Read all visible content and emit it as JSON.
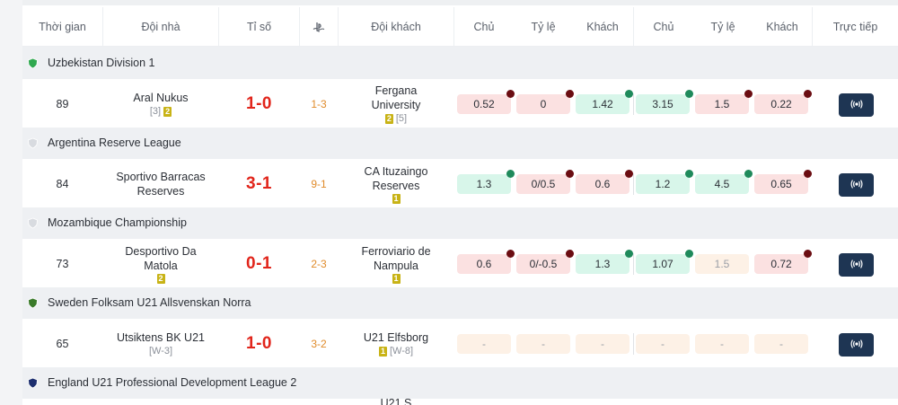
{
  "headers": {
    "time": "Thời gian",
    "home": "Đội nhà",
    "score": "Tỉ số",
    "ps_icon": "playstation-icon",
    "away": "Đội khách",
    "h_home": "Chủ",
    "h_ratio": "Tỷ lệ",
    "h_away": "Khách",
    "o_home": "Chủ",
    "o_ratio": "Tỷ lệ",
    "o_away": "Khách",
    "live": "Trực tiếp"
  },
  "leagues": [
    {
      "name": "Uzbekistan Division 1",
      "flag_color": "#2fa84f",
      "icon": "shield-icon"
    },
    {
      "name": "Argentina Reserve League",
      "flag_color": "#d8dbe0",
      "icon": "ball-icon"
    },
    {
      "name": "Mozambique Championship",
      "flag_color": "#d8dbe0",
      "icon": "ball-icon"
    },
    {
      "name": "Sweden Folksam U21 Allsvenskan Norra",
      "flag_color": "#3a7a2a",
      "icon": "crest-icon"
    },
    {
      "name": "England U21 Professional Development League 2",
      "flag_color": "#1d2f6f",
      "icon": "crest-icon"
    }
  ],
  "matches": [
    {
      "minute": "89",
      "home": "Aral Nukus",
      "home_rank": "[3]",
      "home_cards": "2",
      "score": "1-0",
      "half_time": "1-3",
      "away": "Fergana University",
      "away_rank": "[5]",
      "away_cards": "2",
      "odds": [
        {
          "v": "0.52",
          "c": "red"
        },
        {
          "v": "0",
          "c": "red"
        },
        {
          "v": "1.42",
          "c": "green"
        },
        {
          "v": "3.15",
          "c": "green"
        },
        {
          "v": "1.5",
          "c": "red"
        },
        {
          "v": "0.22",
          "c": "red"
        }
      ]
    },
    {
      "minute": "84",
      "home": "Sportivo Barracas Reserves",
      "home_rank": "",
      "home_cards": "",
      "score": "3-1",
      "half_time": "9-1",
      "away": "CA Ituzaingo Reserves",
      "away_rank": "",
      "away_cards": "1",
      "odds": [
        {
          "v": "1.3",
          "c": "green"
        },
        {
          "v": "0/0.5",
          "c": "red"
        },
        {
          "v": "0.6",
          "c": "red"
        },
        {
          "v": "1.2",
          "c": "green"
        },
        {
          "v": "4.5",
          "c": "green"
        },
        {
          "v": "0.65",
          "c": "red"
        }
      ]
    },
    {
      "minute": "73",
      "home": "Desportivo Da Matola",
      "home_rank": "",
      "home_cards": "2",
      "score": "0-1",
      "half_time": "2-3",
      "away": "Ferroviario de Nampula",
      "away_rank": "",
      "away_cards": "1",
      "odds": [
        {
          "v": "0.6",
          "c": "red"
        },
        {
          "v": "0/-0.5",
          "c": "red"
        },
        {
          "v": "1.3",
          "c": "green"
        },
        {
          "v": "1.07",
          "c": "green"
        },
        {
          "v": "1.5",
          "c": "empty"
        },
        {
          "v": "0.72",
          "c": "red"
        }
      ]
    },
    {
      "minute": "65",
      "home": "Utsiktens BK U21",
      "home_rank": "[W-3]",
      "home_cards": "",
      "score": "1-0",
      "half_time": "3-2",
      "away": "U21 Elfsborg",
      "away_rank": "[W-8]",
      "away_cards": "1",
      "odds": [
        {
          "v": "-",
          "c": "empty"
        },
        {
          "v": "-",
          "c": "empty"
        },
        {
          "v": "-",
          "c": "empty"
        },
        {
          "v": "-",
          "c": "empty"
        },
        {
          "v": "-",
          "c": "empty"
        },
        {
          "v": "-",
          "c": "empty"
        }
      ]
    }
  ],
  "partial_row_text": "U21 S",
  "colors": {
    "score": "#e1251b",
    "half_time": "#e08b2a",
    "live_button": "#1e3553",
    "odd_up": "#d8f6ea",
    "odd_down": "#fbe1e1"
  }
}
